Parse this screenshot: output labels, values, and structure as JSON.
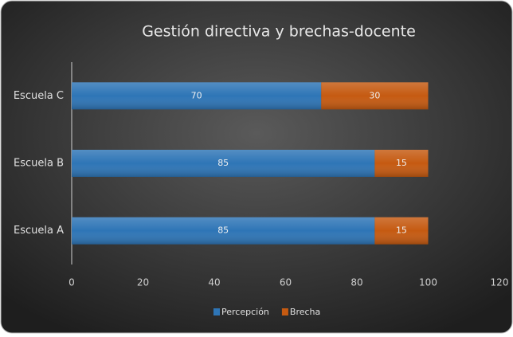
{
  "chart_data": {
    "type": "stacked_bar_horizontal",
    "title": "Gestión directiva y brechas-docente",
    "categories": [
      "Escuela A",
      "Escuela B",
      "Escuela C"
    ],
    "series": [
      {
        "name": "Percepción",
        "color": "#2e75b6",
        "values": [
          85,
          85,
          70
        ]
      },
      {
        "name": "Brecha",
        "color": "#c55a11",
        "values": [
          15,
          15,
          30
        ]
      }
    ],
    "xlim": [
      0,
      120
    ],
    "xticks": [
      0,
      20,
      40,
      60,
      80,
      100,
      120
    ],
    "legend": "bottom"
  }
}
